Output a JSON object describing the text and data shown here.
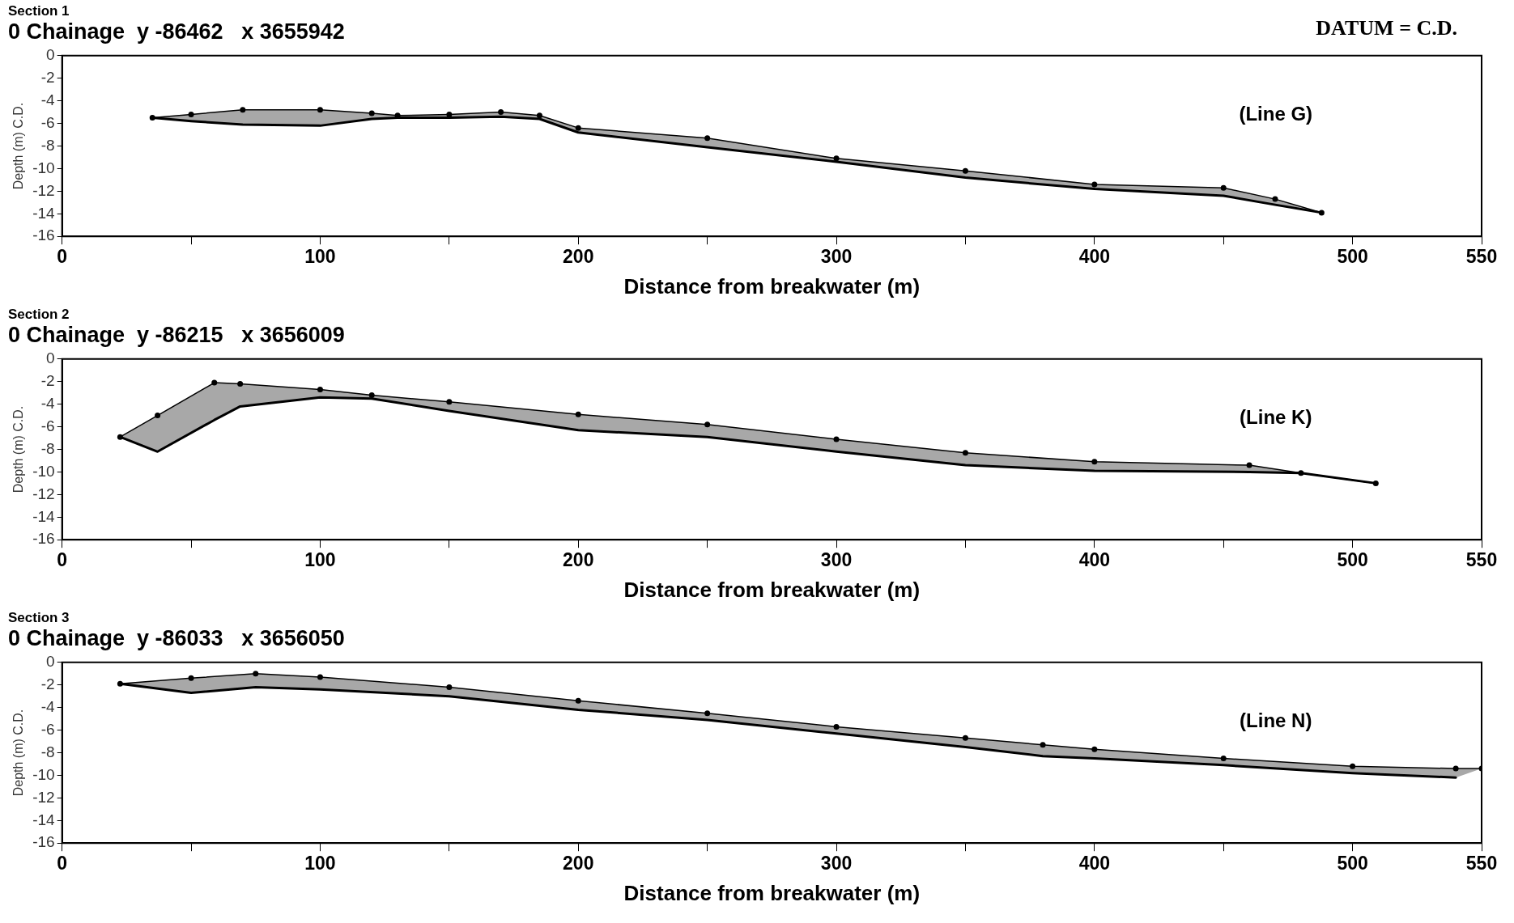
{
  "chart_data": [
    {
      "type": "line",
      "title": "Section 1",
      "subtitle": "0 Chainage  y -86462   x 3655942",
      "xlabel": "Distance from breakwater (m)",
      "ylabel": "Depth (m) C.D.",
      "xlim": [
        0,
        550
      ],
      "xticks": [
        0,
        {
          "value": 50,
          "label": null
        },
        100,
        {
          "value": 150,
          "label": null
        },
        200,
        {
          "value": 250,
          "label": null
        },
        300,
        {
          "value": 350,
          "label": null
        },
        400,
        {
          "value": 450,
          "label": null
        },
        500,
        550
      ],
      "ylim": [
        -16,
        0
      ],
      "yticks": [
        0,
        -2,
        -4,
        -6,
        -8,
        -10,
        -12,
        -14,
        -16
      ],
      "grid": false,
      "legend": false,
      "annotations": [
        "(Line G)",
        "DATUM = C.D."
      ],
      "x": [
        35,
        50,
        70,
        100,
        120,
        130,
        150,
        170,
        185,
        200,
        250,
        300,
        350,
        400,
        450,
        470,
        488
      ],
      "series": [
        {
          "color": "#000000",
          "marker": "circle",
          "values": [
            -5.5,
            -5.2,
            -4.8,
            -4.8,
            -5.1,
            -5.3,
            -5.2,
            -5.0,
            -5.3,
            -6.4,
            -7.3,
            -9.1,
            -10.2,
            -11.4,
            -11.7,
            -12.7,
            -13.9
          ],
          "lower": [
            -5.5,
            -5.8,
            -6.1,
            -6.2,
            -5.6,
            -5.5,
            -5.5,
            -5.4,
            -5.6,
            -6.8,
            -8.1,
            -9.4,
            -10.8,
            -11.8,
            -12.4,
            -13.2,
            -13.9
          ],
          "upper": [
            -5.5,
            -5.2,
            -4.8,
            -4.8,
            -5.1,
            -5.3,
            -5.2,
            -5.0,
            -5.3,
            -6.4,
            -7.3,
            -9.1,
            -10.2,
            -11.4,
            -11.7,
            -12.7,
            -13.9
          ]
        },
        {
          "color": "#000000",
          "values": [
            -5.5,
            -5.8,
            -6.1,
            -6.2,
            -5.6,
            -5.5,
            -5.5,
            -5.4,
            -5.6,
            -6.8,
            -8.1,
            -9.4,
            -10.8,
            -11.8,
            -12.4,
            -13.2,
            -13.9
          ]
        }
      ]
    },
    {
      "type": "line",
      "title": "Section 2",
      "subtitle": "0 Chainage  y -86215   x 3656009",
      "xlabel": "Distance from breakwater (m)",
      "ylabel": "Depth (m) C.D.",
      "xlim": [
        0,
        550
      ],
      "xticks": [
        0,
        {
          "value": 50,
          "label": null
        },
        100,
        {
          "value": 150,
          "label": null
        },
        200,
        {
          "value": 250,
          "label": null
        },
        300,
        {
          "value": 350,
          "label": null
        },
        400,
        {
          "value": 450,
          "label": null
        },
        500,
        550
      ],
      "ylim": [
        -16,
        0
      ],
      "yticks": [
        0,
        -2,
        -4,
        -6,
        -8,
        -10,
        -12,
        -14,
        -16
      ],
      "grid": false,
      "legend": false,
      "annotations": [
        "(Line K)"
      ],
      "x": [
        22.5,
        37,
        59,
        69,
        100,
        120,
        150,
        200,
        250,
        300,
        350,
        400,
        460,
        480,
        509
      ],
      "series": [
        {
          "color": "#000000",
          "marker": "circle",
          "values": [
            -6.9,
            -5.0,
            -2.1,
            -2.2,
            -2.7,
            -3.2,
            -3.8,
            -4.9,
            -5.8,
            -7.1,
            -8.3,
            -9.1,
            -9.4,
            -10.1,
            -11.0
          ],
          "lower": [
            -6.9,
            -8.2,
            -5.4,
            -4.2,
            -3.4,
            -3.5,
            -4.6,
            -6.3,
            -6.9,
            -8.2,
            -9.4,
            -9.9,
            -10.0,
            -10.1,
            -11.0
          ],
          "upper": [
            -6.9,
            -5.0,
            -2.1,
            -2.2,
            -2.7,
            -3.2,
            -3.8,
            -4.9,
            -5.8,
            -7.1,
            -8.3,
            -9.1,
            -9.4,
            -10.1,
            -11.0
          ]
        },
        {
          "color": "#000000",
          "values": [
            -6.9,
            -8.2,
            -5.4,
            -4.2,
            -3.4,
            -3.5,
            -4.6,
            -6.3,
            -6.9,
            -8.2,
            -9.4,
            -9.9,
            -10.0,
            -10.1,
            -11.0
          ]
        }
      ]
    },
    {
      "type": "line",
      "title": "Section 3",
      "subtitle": "0 Chainage  y -86033   x 3656050",
      "xlabel": "Distance from breakwater (m)",
      "ylabel": "Depth (m) C.D.",
      "xlim": [
        0,
        550
      ],
      "xticks": [
        0,
        {
          "value": 50,
          "label": null
        },
        100,
        {
          "value": 150,
          "label": null
        },
        200,
        {
          "value": 250,
          "label": null
        },
        300,
        {
          "value": 350,
          "label": null
        },
        400,
        {
          "value": 450,
          "label": null
        },
        500,
        550
      ],
      "ylim": [
        -16,
        0
      ],
      "yticks": [
        0,
        -2,
        -4,
        -6,
        -8,
        -10,
        -12,
        -14,
        -16
      ],
      "grid": false,
      "legend": false,
      "annotations": [
        "(Line N)"
      ],
      "x": [
        22.5,
        50,
        75,
        100,
        150,
        200,
        250,
        300,
        350,
        380,
        400,
        450,
        500,
        540,
        550
      ],
      "series": [
        {
          "color": "#000000",
          "marker": "circle",
          "values": [
            -1.9,
            -1.4,
            -1.0,
            -1.3,
            -2.2,
            -3.4,
            -4.5,
            -5.7,
            -6.7,
            -7.3,
            -7.7,
            -8.5,
            -9.2,
            -9.4,
            -9.4
          ],
          "lower": [
            -1.9,
            -2.7,
            -2.2,
            -2.4,
            -3.0,
            -4.2,
            -5.1,
            -6.3,
            -7.5,
            -8.3,
            -8.5,
            -9.1,
            -9.8,
            -10.2,
            -9.4
          ],
          "upper": [
            -1.9,
            -1.4,
            -1.0,
            -1.3,
            -2.2,
            -3.4,
            -4.5,
            -5.7,
            -6.7,
            -7.3,
            -7.7,
            -8.5,
            -9.2,
            -9.4,
            -9.4
          ]
        },
        {
          "color": "#000000",
          "values": [
            -1.9,
            -2.7,
            -2.2,
            -2.4,
            -3.0,
            -4.2,
            -5.1,
            -6.3,
            -7.5,
            -8.3,
            -8.5,
            -9.1,
            -9.8,
            -10.2,
            null
          ]
        }
      ]
    }
  ]
}
